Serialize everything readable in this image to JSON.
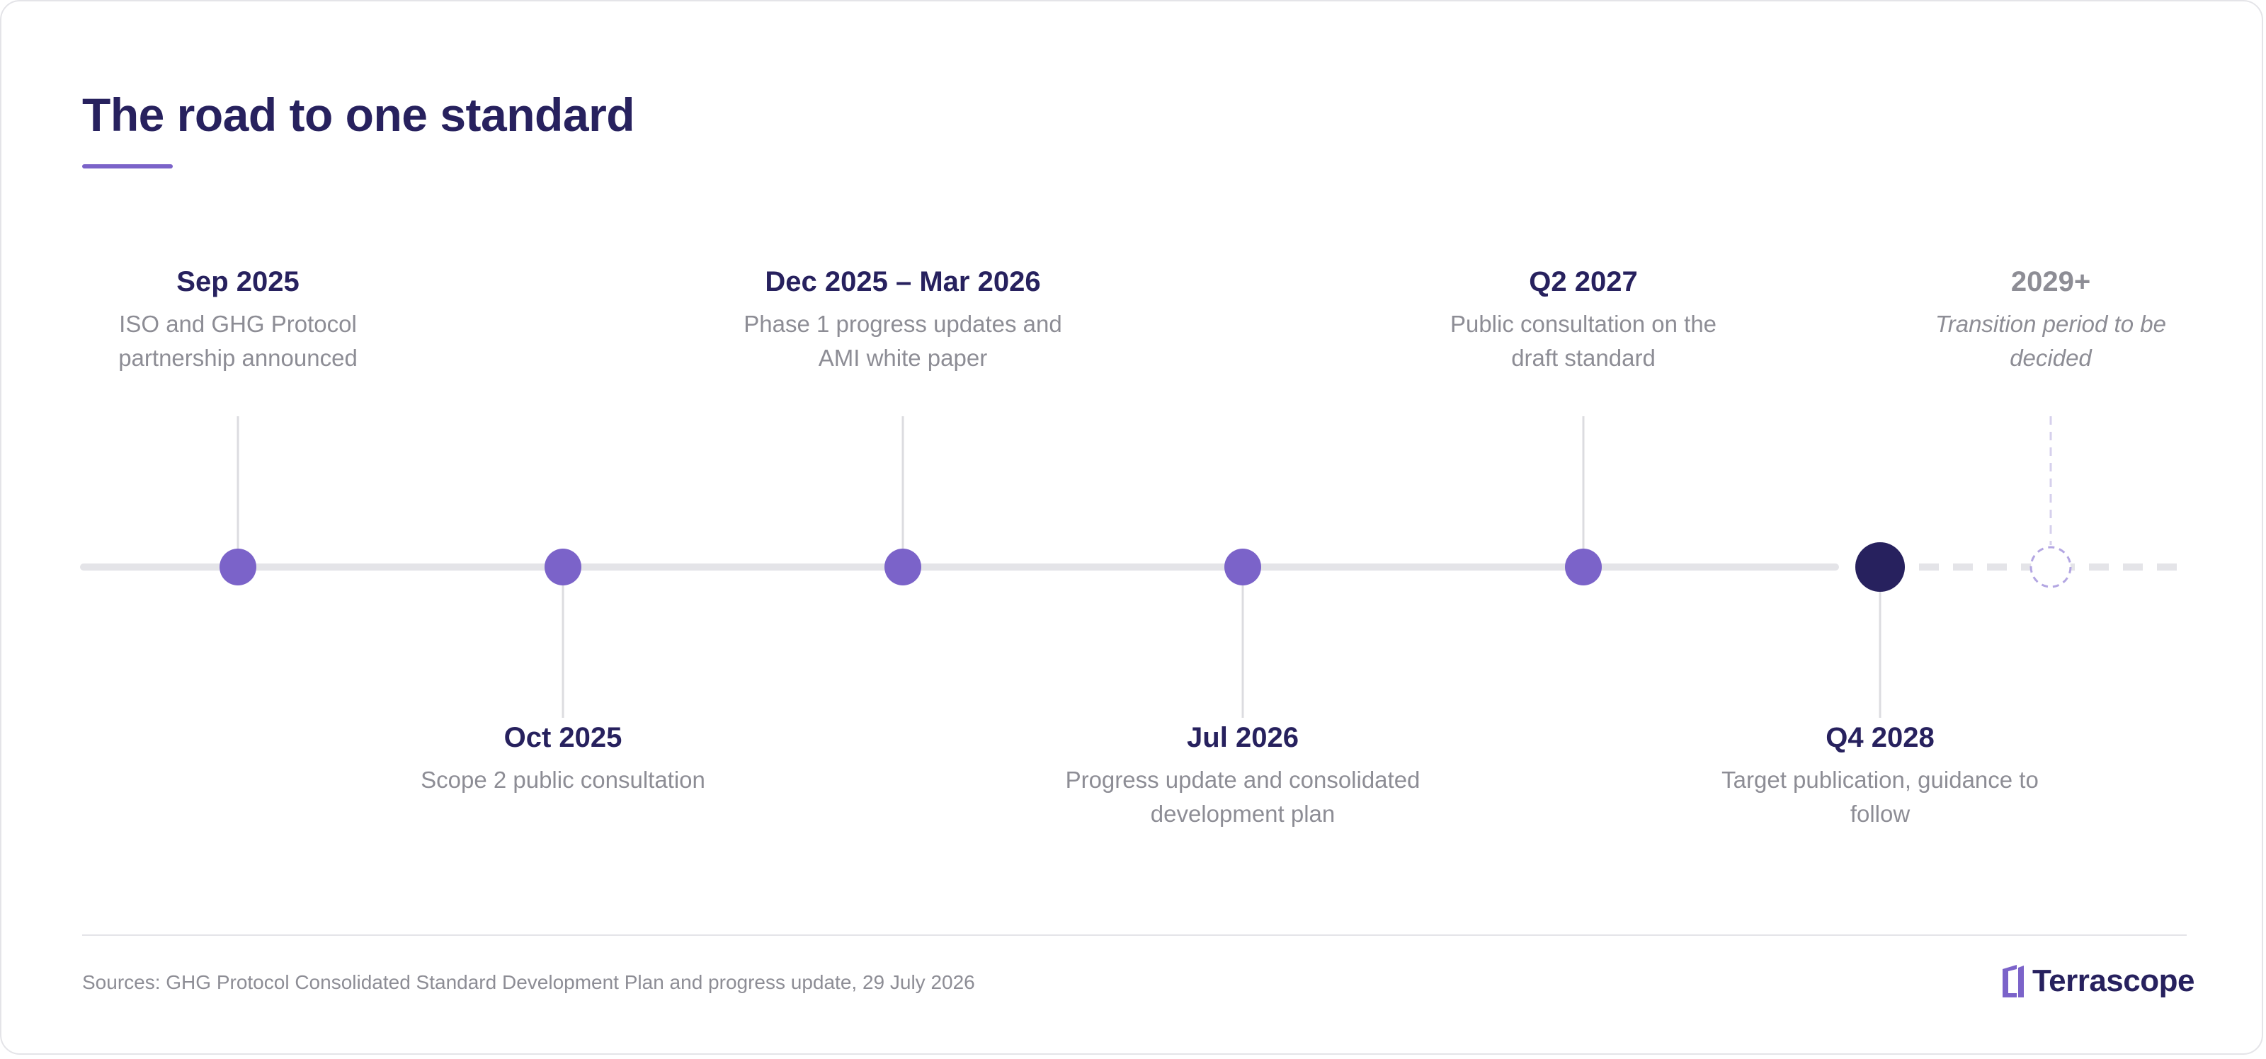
{
  "title": "The road to one standard",
  "milestones": [
    {
      "date": "Sep 2025",
      "desc": "ISO and GHG Protocol partnership announced"
    },
    {
      "date": "Oct 2025",
      "desc": "Scope 2 public consultation"
    },
    {
      "date": "Dec 2025 – Mar 2026",
      "desc": "Phase 1 progress updates and AMI white paper"
    },
    {
      "date": "Jul 2026",
      "desc": "Progress update and consolidated development plan"
    },
    {
      "date": "Q2 2027",
      "desc": "Public consultation on the draft standard"
    },
    {
      "date": "Q4 2028",
      "desc": "Target publication, guidance to follow"
    },
    {
      "date": "2029+",
      "desc": "Transition period to be decided"
    }
  ],
  "footer": {
    "source": "Sources: GHG Protocol Consolidated Standard Development Plan and progress update, 29 July 2026",
    "brand": "Terrascope"
  },
  "colors": {
    "primary": "#27215e",
    "accent": "#7b63c9",
    "muted": "#8d8d95",
    "line": "#e4e4e8"
  }
}
